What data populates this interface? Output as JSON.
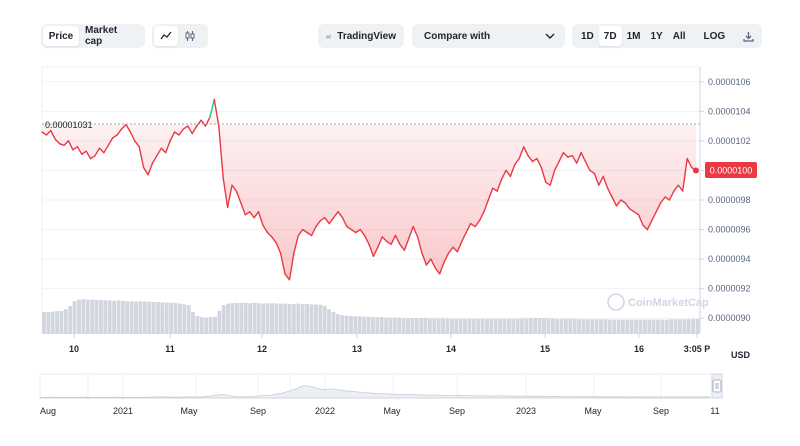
{
  "toolbar": {
    "price_label": "Price",
    "market_cap_label": "Market cap",
    "tradingview_label": "TradingView",
    "compare_label": "Compare with",
    "ranges": [
      "1D",
      "7D",
      "1M",
      "1Y",
      "All"
    ],
    "active_range": "7D",
    "log_label": "LOG"
  },
  "watermark": "CoinMarketCap",
  "currency_label": "USD",
  "colors": {
    "up": "#16c784",
    "down": "#ea3943",
    "grid": "#f0f2f5",
    "text": "#58667e"
  },
  "chart_data": {
    "type": "line",
    "y_ticks": [
      "0.0000090",
      "0.0000092",
      "0.0000094",
      "0.0000096",
      "0.0000098",
      "0.0000100",
      "0.0000102",
      "0.0000104",
      "0.0000106"
    ],
    "ylim": [
      8.9e-06,
      1.07e-05
    ],
    "x_tick_labels": [
      "10",
      "11",
      "12",
      "13",
      "14",
      "15",
      "16",
      "3:05 P"
    ],
    "reference_value": 1.031e-05,
    "reference_label": "0.00001031",
    "current_price_label": "0.0000100",
    "price_series": [
      1.026e-05,
      1.024e-05,
      1.027e-05,
      1.021e-05,
      1.018e-05,
      1.017e-05,
      1.02e-05,
      1.014e-05,
      1.016e-05,
      1.011e-05,
      1.013e-05,
      1.008e-05,
      1.01e-05,
      1.015e-05,
      1.012e-05,
      1.017e-05,
      1.022e-05,
      1.024e-05,
      1.028e-05,
      1.031e-05,
      1.026e-05,
      1.02e-05,
      1.016e-05,
      1.002e-05,
      9.97e-06,
      1.005e-05,
      1.01e-05,
      1.015e-05,
      1.012e-05,
      1.02e-05,
      1.026e-05,
      1.024e-05,
      1.028e-05,
      1.03e-05,
      1.025e-05,
      1.03e-05,
      1.034e-05,
      1.03e-05,
      1.036e-05,
      1.048e-05,
      1.03e-05,
      9.95e-06,
      9.75e-06,
      9.9e-06,
      9.86e-06,
      9.78e-06,
      9.7e-06,
      9.72e-06,
      9.68e-06,
      9.72e-06,
      9.63e-06,
      9.58e-06,
      9.55e-06,
      9.51e-06,
      9.44e-06,
      9.3e-06,
      9.26e-06,
      9.44e-06,
      9.56e-06,
      9.6e-06,
      9.58e-06,
      9.56e-06,
      9.62e-06,
      9.66e-06,
      9.68e-06,
      9.64e-06,
      9.68e-06,
      9.72e-06,
      9.68e-06,
      9.62e-06,
      9.6e-06,
      9.58e-06,
      9.6e-06,
      9.56e-06,
      9.5e-06,
      9.42e-06,
      9.48e-06,
      9.55e-06,
      9.52e-06,
      9.5e-06,
      9.56e-06,
      9.5e-06,
      9.46e-06,
      9.54e-06,
      9.62e-06,
      9.55e-06,
      9.44e-06,
      9.36e-06,
      9.4e-06,
      9.34e-06,
      9.3e-06,
      9.38e-06,
      9.44e-06,
      9.48e-06,
      9.45e-06,
      9.52e-06,
      9.58e-06,
      9.64e-06,
      9.62e-06,
      9.66e-06,
      9.72e-06,
      9.8e-06,
      9.88e-06,
      9.86e-06,
      9.94e-06,
      1e-05,
      9.96e-06,
      1.004e-05,
      1.008e-05,
      1.016e-05,
      1.01e-05,
      1.006e-05,
      1.008e-05,
      1.002e-05,
      9.92e-06,
      9.9e-06,
      1e-05,
      1.006e-05,
      1.012e-05,
      1.009e-05,
      1.01e-05,
      1.005e-05,
      1.012e-05,
      1.006e-05,
      1e-05,
      9.98e-06,
      9.9e-06,
      9.96e-06,
      9.88e-06,
      9.82e-06,
      9.76e-06,
      9.8e-06,
      9.78e-06,
      9.74e-06,
      9.72e-06,
      9.7e-06,
      9.63e-06,
      9.6e-06,
      9.66e-06,
      9.72e-06,
      9.78e-06,
      9.82e-06,
      9.8e-06,
      9.86e-06,
      9.9e-06,
      9.86e-06,
      1.008e-05,
      1.002e-05,
      1e-05
    ],
    "volume_series": [
      0.55,
      0.55,
      0.56,
      0.57,
      0.58,
      0.62,
      0.7,
      0.82,
      0.86,
      0.87,
      0.86,
      0.86,
      0.85,
      0.85,
      0.84,
      0.84,
      0.83,
      0.84,
      0.83,
      0.82,
      0.82,
      0.81,
      0.82,
      0.81,
      0.81,
      0.8,
      0.8,
      0.79,
      0.79,
      0.78,
      0.78,
      0.76,
      0.74,
      0.72,
      0.55,
      0.45,
      0.42,
      0.41,
      0.42,
      0.43,
      0.58,
      0.72,
      0.76,
      0.77,
      0.78,
      0.78,
      0.78,
      0.77,
      0.78,
      0.77,
      0.76,
      0.77,
      0.77,
      0.76,
      0.76,
      0.76,
      0.75,
      0.75,
      0.76,
      0.75,
      0.75,
      0.74,
      0.74,
      0.73,
      0.7,
      0.62,
      0.55,
      0.5,
      0.47,
      0.46,
      0.45,
      0.44,
      0.44,
      0.43,
      0.43,
      0.42,
      0.42,
      0.42,
      0.41,
      0.41,
      0.41,
      0.41,
      0.4,
      0.4,
      0.4,
      0.4,
      0.4,
      0.4,
      0.39,
      0.39,
      0.39,
      0.39,
      0.39,
      0.38,
      0.38,
      0.38,
      0.38,
      0.38,
      0.38,
      0.38,
      0.38,
      0.38,
      0.38,
      0.38,
      0.38,
      0.38,
      0.38,
      0.38,
      0.38,
      0.39,
      0.39,
      0.4,
      0.4,
      0.4,
      0.4,
      0.39,
      0.39,
      0.38,
      0.38,
      0.38,
      0.38,
      0.38,
      0.37,
      0.37,
      0.37,
      0.37,
      0.37,
      0.37,
      0.37,
      0.36,
      0.36,
      0.36,
      0.36,
      0.36,
      0.36,
      0.36,
      0.36,
      0.36,
      0.36,
      0.36,
      0.36,
      0.36,
      0.36,
      0.37,
      0.37,
      0.37,
      0.37,
      0.37,
      0.38,
      0.38
    ],
    "navigator_labels": [
      "Aug",
      "2021",
      "May",
      "Sep",
      "2022",
      "May",
      "Sep",
      "2023",
      "May",
      "Sep",
      "11"
    ],
    "navigator_series": [
      0.02,
      0.03,
      0.03,
      0.02,
      0.03,
      0.02,
      0.03,
      0.03,
      0.02,
      0.03,
      0.02,
      0.03,
      0.03,
      0.02,
      0.03,
      0.02,
      0.03,
      0.04,
      0.05,
      0.04,
      0.03,
      0.04,
      0.05,
      0.04,
      0.05,
      0.08,
      0.12,
      0.15,
      0.1,
      0.06,
      0.05,
      0.06,
      0.08,
      0.1,
      0.12,
      0.16,
      0.22,
      0.3,
      0.4,
      0.52,
      0.48,
      0.4,
      0.35,
      0.38,
      0.34,
      0.3,
      0.28,
      0.25,
      0.22,
      0.2,
      0.18,
      0.18,
      0.16,
      0.15,
      0.14,
      0.15,
      0.13,
      0.12,
      0.13,
      0.12,
      0.11,
      0.1,
      0.11,
      0.1,
      0.09,
      0.1,
      0.09,
      0.08,
      0.09,
      0.08,
      0.08,
      0.07,
      0.08,
      0.07,
      0.07,
      0.06,
      0.07,
      0.06,
      0.06,
      0.06,
      0.05,
      0.06,
      0.05,
      0.05,
      0.05,
      0.05,
      0.05,
      0.04,
      0.05,
      0.04,
      0.04,
      0.04,
      0.04,
      0.04,
      0.04,
      0.04,
      0.04,
      0.04,
      0.05,
      0.05
    ]
  }
}
